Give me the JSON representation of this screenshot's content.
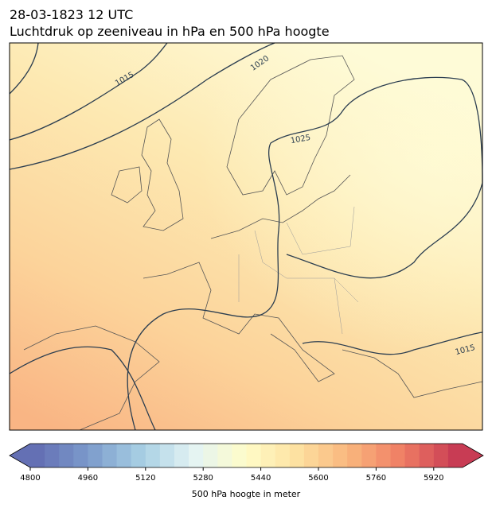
{
  "title": "28-03-1823 12 UTC",
  "subtitle": "Luchtdruk op zeeniveau in hPa en 500 hPa hoogte",
  "isobar_labels": [
    "1015",
    "1020",
    "1025",
    "1015"
  ],
  "colorbar": {
    "label": "500 hPa hoogte in meter",
    "lim": [
      4800,
      6000
    ],
    "ticks": [
      4800,
      4960,
      5120,
      5280,
      5440,
      5600,
      5760,
      5920
    ]
  }
}
